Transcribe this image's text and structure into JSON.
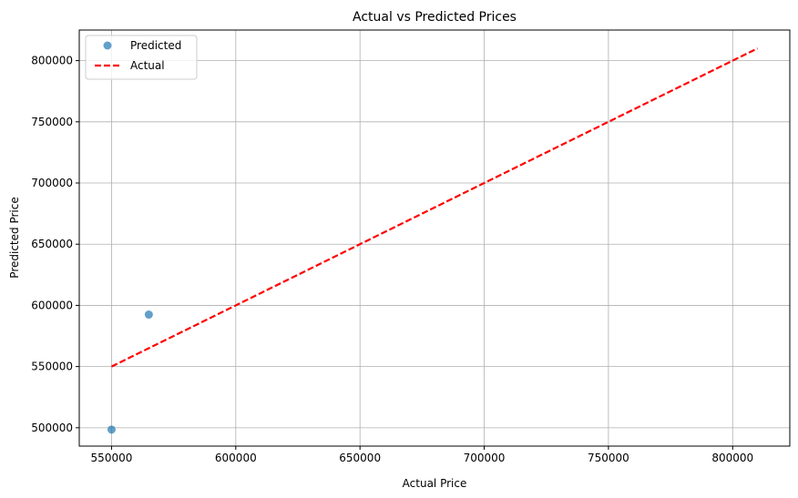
{
  "chart_data": {
    "type": "scatter",
    "title": "Actual vs Predicted Prices",
    "xlabel": "Actual Price",
    "ylabel": "Predicted Price",
    "xlim": [
      537000,
      823000
    ],
    "ylim": [
      485000,
      825000
    ],
    "xticks": [
      550000,
      600000,
      650000,
      700000,
      750000,
      800000
    ],
    "yticks": [
      500000,
      550000,
      600000,
      650000,
      700000,
      750000,
      800000
    ],
    "xtick_labels": [
      "550000",
      "600000",
      "650000",
      "700000",
      "750000",
      "800000"
    ],
    "ytick_labels": [
      "500000",
      "550000",
      "600000",
      "650000",
      "700000",
      "750000",
      "800000"
    ],
    "grid": true,
    "legend_position": "top-left",
    "series": [
      {
        "name": "Predicted",
        "kind": "scatter",
        "color": "#1f77b4",
        "opacity": 0.7,
        "points": [
          {
            "x": 550000,
            "y": 498500
          },
          {
            "x": 565000,
            "y": 592500
          }
        ]
      },
      {
        "name": "Actual",
        "kind": "line",
        "style": "dashed",
        "color": "#ff0000",
        "points": [
          {
            "x": 550000,
            "y": 550000
          },
          {
            "x": 810000,
            "y": 810000
          }
        ]
      }
    ]
  }
}
